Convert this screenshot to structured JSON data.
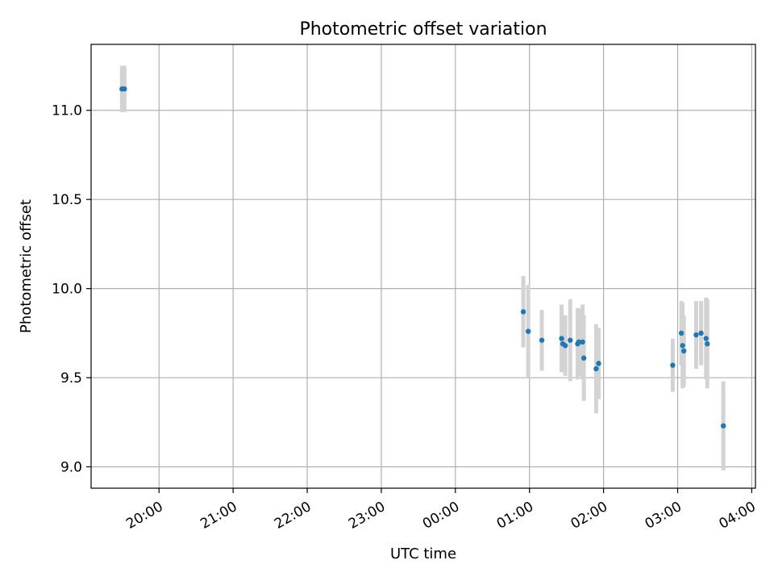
{
  "chart_data": {
    "type": "scatter",
    "title": "Photometric offset variation",
    "xlabel": "UTC time",
    "ylabel": "Photometric offset",
    "x_tick_labels": [
      "20:00",
      "21:00",
      "22:00",
      "23:00",
      "00:00",
      "01:00",
      "02:00",
      "03:00",
      "04:00"
    ],
    "y_tick_labels": [
      "9.0",
      "9.5",
      "10.0",
      "10.5",
      "11.0"
    ],
    "xlim": [
      "19:05",
      "04:03"
    ],
    "ylim": [
      8.88,
      11.37
    ],
    "grid": true,
    "colors": {
      "points": "#1f77b4",
      "error_bars": "#d3d3d3",
      "grid": "#b0b0b0"
    },
    "series": [
      {
        "points": [
          {
            "x": "19:30",
            "y": 11.12,
            "err": 0.13
          },
          {
            "x": "19:32",
            "y": 11.12,
            "err": 0.13
          },
          {
            "x": "00:55",
            "y": 9.87,
            "err": 0.2
          },
          {
            "x": "00:59",
            "y": 9.76,
            "err": 0.26
          },
          {
            "x": "01:10",
            "y": 9.71,
            "err": 0.17
          },
          {
            "x": "01:26",
            "y": 9.72,
            "err": 0.19
          },
          {
            "x": "01:27",
            "y": 9.69,
            "err": 0.16
          },
          {
            "x": "01:29",
            "y": 9.68,
            "err": 0.17
          },
          {
            "x": "01:33",
            "y": 9.71,
            "err": 0.23
          },
          {
            "x": "01:39",
            "y": 9.69,
            "err": 0.2
          },
          {
            "x": "01:40",
            "y": 9.7,
            "err": 0.19
          },
          {
            "x": "01:43",
            "y": 9.7,
            "err": 0.21
          },
          {
            "x": "01:44",
            "y": 9.61,
            "err": 0.24
          },
          {
            "x": "01:54",
            "y": 9.55,
            "err": 0.25
          },
          {
            "x": "01:56",
            "y": 9.58,
            "err": 0.2
          },
          {
            "x": "02:56",
            "y": 9.57,
            "err": 0.15
          },
          {
            "x": "03:03",
            "y": 9.75,
            "err": 0.18
          },
          {
            "x": "03:04",
            "y": 9.68,
            "err": 0.24
          },
          {
            "x": "03:05",
            "y": 9.65,
            "err": 0.2
          },
          {
            "x": "03:15",
            "y": 9.74,
            "err": 0.19
          },
          {
            "x": "03:19",
            "y": 9.75,
            "err": 0.18
          },
          {
            "x": "03:23",
            "y": 9.72,
            "err": 0.23
          },
          {
            "x": "03:24",
            "y": 9.69,
            "err": 0.25
          },
          {
            "x": "03:37",
            "y": 9.23,
            "err": 0.25
          }
        ]
      }
    ]
  }
}
